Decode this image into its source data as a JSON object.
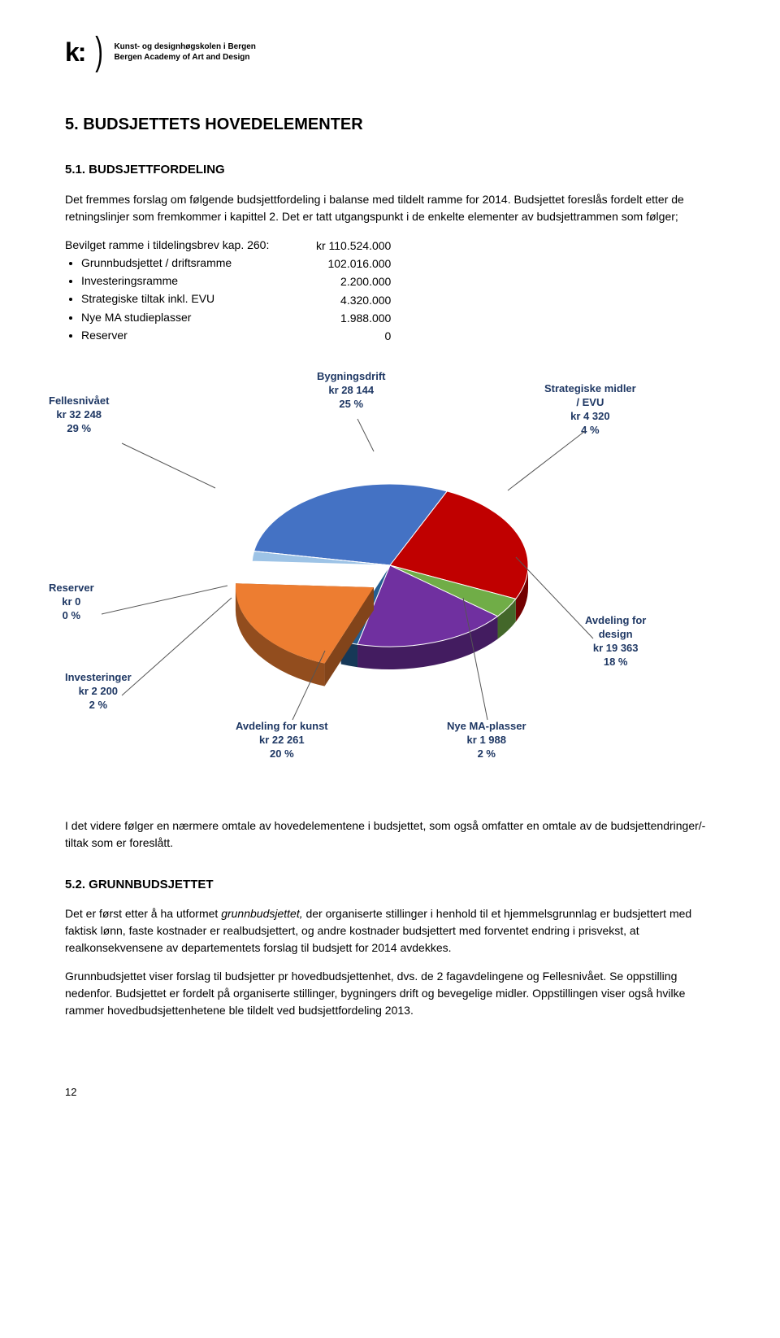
{
  "logo": {
    "mark": "k:",
    "line1": "Kunst- og designhøgskolen i Bergen",
    "line2": "Bergen Academy of Art and Design"
  },
  "heading_main": "5.   BUDSJETTETS HOVEDELEMENTER",
  "heading_51": "5.1.   BUDSJETTFORDELING",
  "para_51a": "Det fremmes forslag om følgende budsjettfordeling i balanse med tildelt ramme for 2014. Budsjettet foreslås fordelt etter de retningslinjer som fremkommer i kapittel 2. Det er tatt utgangspunkt i de enkelte elementer av budsjettrammen som følger;",
  "budget_intro": "Bevilget ramme i tildelingsbrev kap. 260:",
  "budget_intro_val": "kr 110.524.000",
  "budget_items": [
    {
      "label": "Grunnbudsjettet / driftsramme",
      "value": "102.016.000"
    },
    {
      "label": "Investeringsramme",
      "value": "2.200.000"
    },
    {
      "label": "Strategiske tiltak inkl. EVU",
      "value": "4.320.000"
    },
    {
      "label": "Nye MA studieplasser",
      "value": "1.988.000"
    },
    {
      "label": "Reserver",
      "value": "0"
    }
  ],
  "pie": {
    "type": "pie",
    "background_color": "#ffffff",
    "label_color": "#1f3864",
    "label_fontsize": 13,
    "slices": [
      {
        "name": "Fellesnivået",
        "amount": "kr 32 248",
        "percent": "29 %",
        "color": "#4472c4"
      },
      {
        "name": "Bygningsdrift",
        "amount": "kr 28 144",
        "percent": "25 %",
        "color": "#a5a5a5"
      },
      {
        "name": "Strategiske midler / EVU",
        "amount": "kr 4 320",
        "percent": "4 %",
        "color": "#70ad47"
      },
      {
        "name": "Avdeling for design",
        "amount": "kr 19 363",
        "percent": "18 %",
        "color": "#7030a0"
      },
      {
        "name": "Nye MA-plasser",
        "amount": "kr 1 988",
        "percent": "2 %",
        "color": "#255e91"
      },
      {
        "name": "Avdeling for kunst",
        "amount": "kr 22 261",
        "percent": "20 %",
        "color": "#ed7d31"
      },
      {
        "name": "Investeringer",
        "amount": "kr 2 200",
        "percent": "2 %",
        "color": "#9dc3e6"
      },
      {
        "name": "Reserver",
        "amount": "kr 0",
        "percent": "0 %",
        "color": "#8497b0"
      }
    ],
    "red_override_for": "Bygningsdrift",
    "red_color": "#c00000",
    "depth_shade": "#000000",
    "depth_shade_opacity": 0.25
  },
  "para_mid": "I det videre følger en nærmere omtale av hovedelementene i budsjettet, som også omfatter en omtale av de budsjettendringer/-tiltak som er foreslått.",
  "heading_52": "5.2.   GRUNNBUDSJETTET",
  "para_52a_pre": "Det er først etter å ha utformet ",
  "para_52a_em": "grunnbudsjettet,",
  "para_52a_post": " der organiserte stillinger i henhold til et hjemmelsgrunnlag er budsjettert med faktisk lønn, faste kostnader er realbudsjettert, og andre kostnader budsjettert med forventet endring i prisvekst, at realkonsekvensene av departementets forslag til budsjett for 2014 avdekkes.",
  "para_52b": "Grunnbudsjettet viser forslag til budsjetter pr hovedbudsjettenhet, dvs. de 2 fagavdelingene og Fellesnivået. Se oppstilling nedenfor. Budsjettet er fordelt på organiserte stillinger, bygningers drift og bevegelige midler. Oppstillingen viser også hvilke rammer hovedbudsjettenhetene ble tildelt ved budsjettfordeling 2013.",
  "page_number": "12"
}
